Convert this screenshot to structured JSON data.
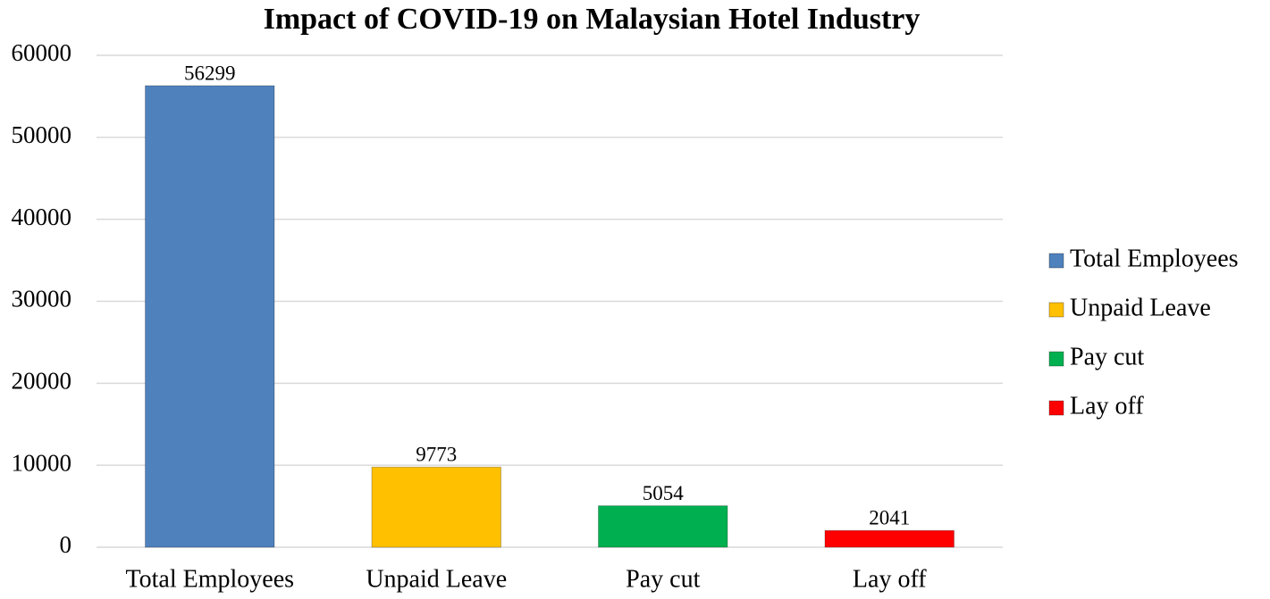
{
  "chart_data": {
    "type": "bar",
    "title": "Impact of COVID-19 on Malaysian Hotel Industry",
    "categories": [
      "Total Employees",
      "Unpaid Leave",
      "Pay cut",
      "Lay off"
    ],
    "values": [
      56299,
      9773,
      5054,
      2041
    ],
    "colors": [
      "#4f81bd",
      "#ffc000",
      "#00b050",
      "#ff0000"
    ],
    "ylim": [
      0,
      60000
    ],
    "yticks": [
      0,
      10000,
      20000,
      30000,
      40000,
      50000,
      60000
    ],
    "grid": true,
    "legend": "right"
  }
}
